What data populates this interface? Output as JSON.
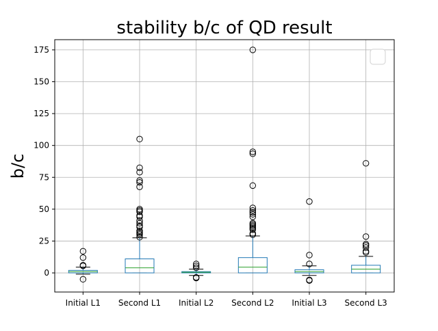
{
  "chart_data": {
    "type": "box",
    "title": "stability b/c of QD result",
    "xlabel": "",
    "ylabel": "b/c",
    "ylim": [
      -15,
      183
    ],
    "yticks": [
      0,
      25,
      50,
      75,
      100,
      125,
      150,
      175
    ],
    "grid": true,
    "legend": "top-right (empty)",
    "colors": {
      "box": "#1f77b4",
      "median": "#2ca02c",
      "whisker": "#000000",
      "flier": "#000000",
      "grid": "#b0b0b0"
    },
    "categories": [
      "Initial L1",
      "Second L1",
      "Initial L2",
      "Second L2",
      "Initial L3",
      "Second L3"
    ],
    "boxes": [
      {
        "q1": 0,
        "median": 1,
        "q3": 2,
        "whislo": -1,
        "whishi": 4.5,
        "fliers": [
          17,
          12,
          6,
          5.5,
          -5
        ]
      },
      {
        "q1": 0,
        "median": 4,
        "q3": 11,
        "whislo": 0,
        "whishi": 27.5,
        "fliers": [
          105,
          82.5,
          79,
          72.5,
          71,
          67.5,
          50,
          49,
          48,
          45,
          44,
          41,
          39,
          37,
          36,
          33,
          32,
          31,
          30,
          28
        ]
      },
      {
        "q1": 0,
        "median": 0.5,
        "q3": 1,
        "whislo": -2,
        "whishi": 3,
        "fliers": [
          7,
          5.5,
          4,
          -3.5,
          -4
        ]
      },
      {
        "q1": 0,
        "median": 4.5,
        "q3": 12,
        "whislo": 0,
        "whishi": 29,
        "fliers": [
          175,
          95,
          93.5,
          68.5,
          51,
          49,
          47.5,
          46,
          44,
          39,
          38,
          37,
          36,
          35,
          34,
          31,
          30
        ]
      },
      {
        "q1": 0,
        "median": 1,
        "q3": 2.5,
        "whislo": -2,
        "whishi": 5.5,
        "fliers": [
          56,
          14,
          7,
          -5.5,
          -6
        ]
      },
      {
        "q1": 0,
        "median": 3,
        "q3": 6,
        "whislo": 0,
        "whishi": 13,
        "fliers": [
          86,
          28.5,
          22.5,
          21.5,
          20,
          17,
          16
        ]
      }
    ]
  }
}
